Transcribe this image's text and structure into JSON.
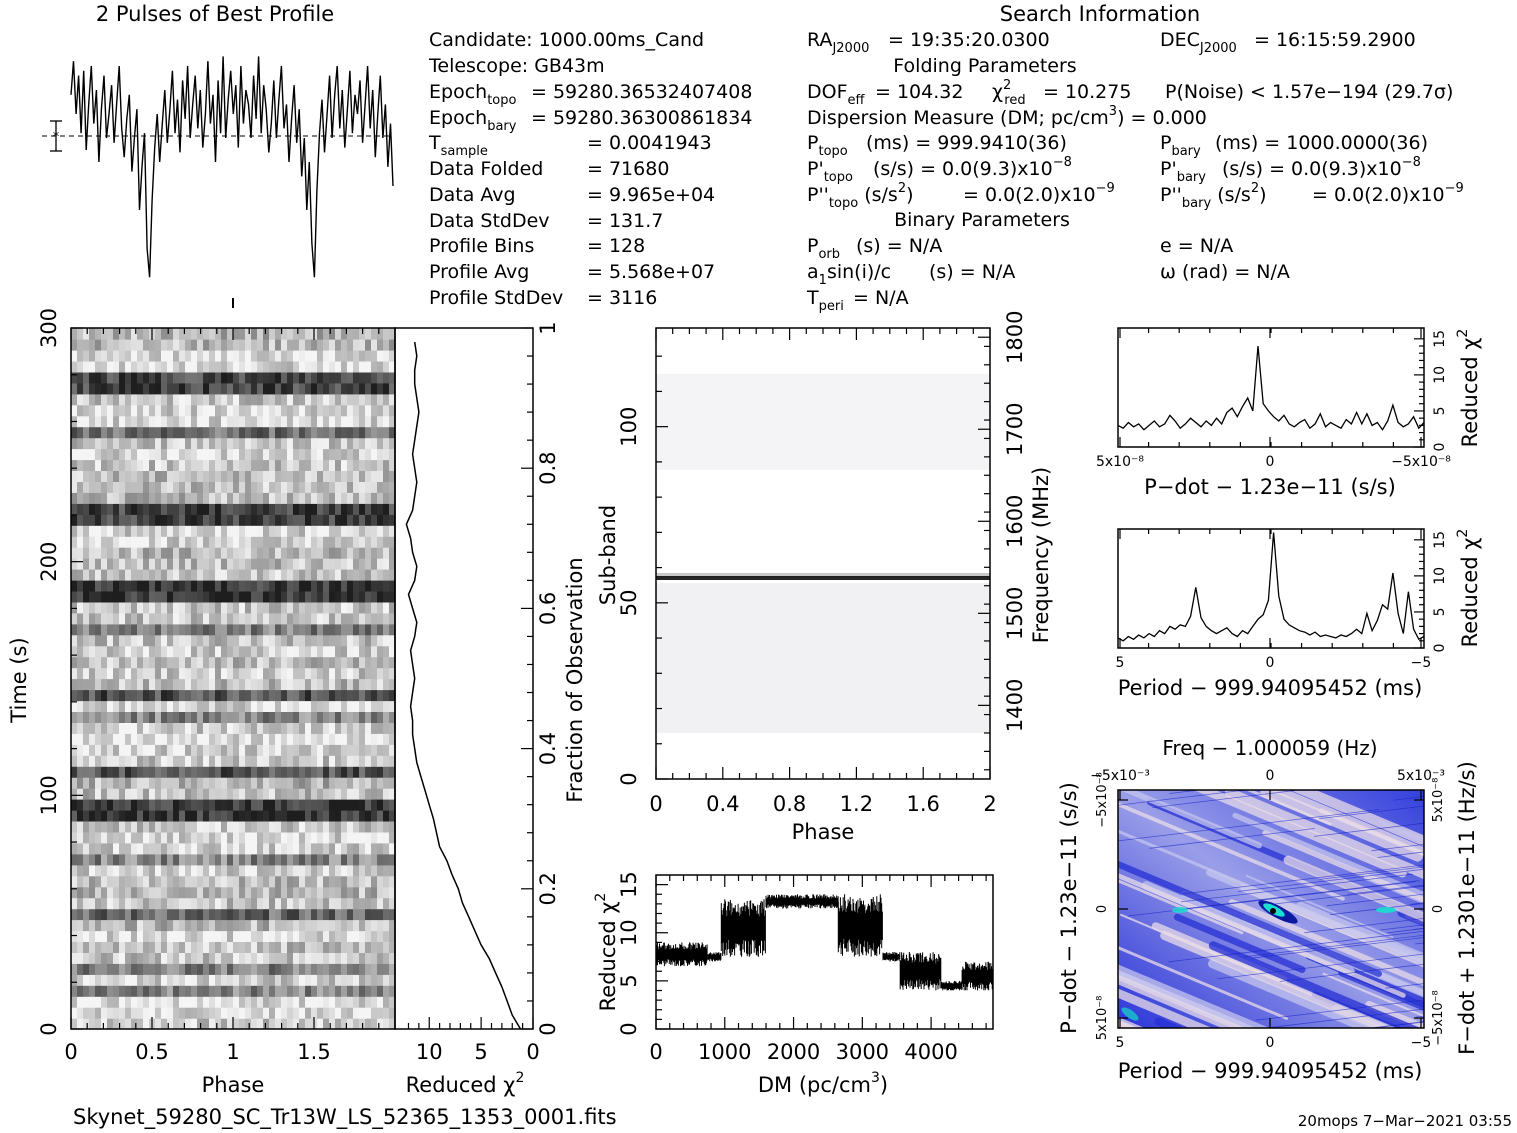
{
  "header": {
    "profile_title": "2 Pulses of Best Profile",
    "search_title": "Search Information",
    "folding_title": "Folding Parameters",
    "binary_title": "Binary Parameters"
  },
  "info": {
    "candidate": "Candidate:  1000.00ms_Cand",
    "telescope": "Telescope:  GB43m",
    "epoch_topo": "= 59280.36532407408",
    "epoch_bary": "= 59280.36300861834",
    "tsample": "=   0.0041943",
    "data_folded_label": "Data Folded",
    "data_folded": "=   71680",
    "data_avg_label": "Data Avg",
    "data_avg": "=   9.965e+04",
    "data_std_label": "Data StdDev",
    "data_std": "=   131.7",
    "profile_bins_label": "Profile Bins",
    "profile_bins": "=   128",
    "profile_avg_label": "Profile Avg",
    "profile_avg": "=   5.568e+07",
    "profile_std_label": "Profile StdDev",
    "profile_std": "=   3116",
    "ra": "= 19:35:20.0300",
    "dec": "= 16:15:59.2900",
    "dof": "= 104.32",
    "chi2": "= 10.275",
    "pnoise": "P(Noise) < 1.57e−194   (29.7σ)",
    "dm": "Dispersion Measure (DM; pc/cm",
    "dm_val": ") = 0.000",
    "ptopo": "(ms)  =  999.9410(36)",
    "pbary": "(ms)  =  1000.0000(36)",
    "pdtopo": "(s/s) = 0.0(9.3)x10",
    "pdbary": "(s/s) = 0.0(9.3)x10",
    "pddtopo": "= 0.0(2.0)x10",
    "pddbary": "= 0.0(2.0)x10",
    "porb": "(s) = N/A",
    "asini": "(s) = N/A",
    "tperi": "= N/A",
    "ecc": "e = N/A",
    "omega": "ω (rad) = N/A"
  },
  "footer": {
    "filename": "Skynet_59280_SC_Tr13W_LS_52365_1353_0001.fits",
    "stamp": "20mops  7−Mar−2021 03:55"
  },
  "colors": {
    "ink": "#000000",
    "map_low": "#1d2bd8",
    "map_mid": "#8a90e8",
    "map_high": "#e8d8e8",
    "map_peak": "#17e0d0"
  },
  "chart_data": [
    {
      "type": "line",
      "name": "profile",
      "title": "2 Pulses of Best Profile",
      "x_range": [
        0,
        2
      ],
      "y_range": [
        0,
        1
      ],
      "values": [
        0.78,
        0.92,
        0.7,
        0.86,
        0.62,
        0.88,
        0.55,
        0.74,
        0.9,
        0.66,
        0.8,
        0.5,
        0.72,
        0.86,
        0.6,
        0.7,
        0.82,
        0.58,
        0.74,
        0.9,
        0.64,
        0.52,
        0.68,
        0.78,
        0.46,
        0.6,
        0.72,
        0.3,
        0.48,
        0.62,
        0.14,
        0.02,
        0.34,
        0.56,
        0.7,
        0.5,
        0.66,
        0.8,
        0.58,
        0.72,
        0.88,
        0.62,
        0.76,
        0.54,
        0.84,
        0.68,
        0.9,
        0.6,
        0.74,
        0.86,
        0.64,
        0.8,
        0.56,
        0.7,
        0.92,
        0.66,
        0.78,
        0.5,
        0.84,
        0.62,
        0.94,
        0.6,
        0.76,
        0.88,
        0.7,
        0.82,
        0.56,
        0.9,
        0.66,
        0.8,
        0.74,
        0.6,
        0.86,
        0.68,
        0.94,
        0.62,
        0.82,
        0.72,
        0.54,
        0.66,
        0.84,
        0.6,
        0.76,
        0.9,
        0.64,
        0.74,
        0.5,
        0.68,
        0.82,
        0.58,
        0.72,
        0.44,
        0.6,
        0.3,
        0.5,
        0.16,
        0.02,
        0.38,
        0.62,
        0.76,
        0.54,
        0.7,
        0.86,
        0.6,
        0.78,
        0.9,
        0.64,
        0.8,
        0.56,
        0.72,
        0.88,
        0.62,
        0.78,
        0.7,
        0.84,
        0.58,
        0.74,
        0.9,
        0.64,
        0.8,
        0.52,
        0.7,
        0.86,
        0.6,
        0.74,
        0.48,
        0.66,
        0.4
      ]
    },
    {
      "type": "heatmap",
      "name": "time-phase",
      "xlabel": "Phase",
      "ylabel": "Time (s)",
      "xlim": [
        0,
        2
      ],
      "ylim": [
        0,
        300
      ],
      "x_ticks": [
        "0",
        "0.5",
        "1",
        "1.5"
      ],
      "y_ticks": [
        "0",
        "100",
        "200",
        "300"
      ],
      "right_axis_label": "Fraction of Observation",
      "right_ticks": [
        "0",
        "0.2",
        "0.4",
        "0.6",
        "0.8",
        "1"
      ]
    },
    {
      "type": "line",
      "name": "time-chi2",
      "xlabel": "Reduced χ²",
      "x_ticks": [
        "10",
        "5",
        "0"
      ],
      "x": [
        1.2,
        2,
        2.5,
        3,
        3.6,
        4.2,
        5,
        5.6,
        6.2,
        6.8,
        7.2,
        7.8,
        8.3,
        9,
        9.3,
        9.6,
        10,
        10.4,
        10.8,
        11.2,
        11.4,
        11.6,
        11.6,
        11.8,
        11.6,
        11.4,
        11.6,
        11.8,
        11.4,
        11.2,
        11.6,
        12,
        11.4,
        11.2,
        11.6,
        11.8,
        12.2,
        11.6,
        11.4,
        11.2,
        11.4,
        11.6,
        11.4,
        11.2,
        11.0,
        11.2,
        11.4,
        11.4,
        11.2,
        11.4
      ],
      "y": [
        0,
        6,
        12,
        18,
        24,
        30,
        36,
        42,
        48,
        54,
        60,
        66,
        72,
        78,
        84,
        90,
        96,
        102,
        108,
        114,
        120,
        126,
        132,
        138,
        144,
        150,
        156,
        162,
        168,
        174,
        180,
        186,
        192,
        198,
        204,
        210,
        216,
        222,
        228,
        234,
        240,
        246,
        252,
        258,
        264,
        270,
        276,
        282,
        288,
        294
      ]
    },
    {
      "type": "heatmap",
      "name": "subband-phase",
      "xlabel": "Phase",
      "ylabel": "Sub-band",
      "x_ticks": [
        "0",
        "0.4",
        "0.8",
        "1.2",
        "1.6",
        "2"
      ],
      "y_ticks": [
        "0",
        "50",
        "100"
      ],
      "right_axis_label": "Frequency (MHz)",
      "right_ticks": [
        "1400",
        "1500",
        "1600",
        "1700",
        "1800"
      ]
    },
    {
      "type": "line",
      "name": "dm-chi2",
      "xlabel": "DM (pc/cm³)",
      "ylabel": "Reduced χ²",
      "x_ticks": [
        "0",
        "1000",
        "2000",
        "3000",
        "4000"
      ],
      "y_ticks": [
        "0",
        "5",
        "10",
        "15"
      ],
      "xlim": [
        0,
        4900
      ],
      "ylim": [
        0,
        16
      ],
      "segments": [
        {
          "x": [
            0,
            750
          ],
          "lo": 6.5,
          "hi": 9
        },
        {
          "x": [
            750,
            950
          ],
          "lo": 7,
          "hi": 8
        },
        {
          "x": [
            950,
            1600
          ],
          "lo": 7.5,
          "hi": 13.5
        },
        {
          "x": [
            1600,
            2650
          ],
          "lo": 12.5,
          "hi": 14
        },
        {
          "x": [
            2650,
            3300
          ],
          "lo": 7.5,
          "hi": 14
        },
        {
          "x": [
            3300,
            3550
          ],
          "lo": 7,
          "hi": 8
        },
        {
          "x": [
            3550,
            4150
          ],
          "lo": 4,
          "hi": 8
        },
        {
          "x": [
            4150,
            4450
          ],
          "lo": 4,
          "hi": 5
        },
        {
          "x": [
            4450,
            4900
          ],
          "lo": 4,
          "hi": 7
        }
      ]
    },
    {
      "type": "line",
      "name": "pdot-chi2",
      "xlabel": "P−dot − 1.23e−11 (s/s)",
      "ylabel": "Reduced χ²",
      "x_ticks": [
        "5x10⁻⁸",
        "0",
        "−5x10⁻⁸"
      ],
      "y_ticks": [
        "0",
        "5",
        "10",
        "15"
      ],
      "values": [
        3,
        2.6,
        3.4,
        2.8,
        3.2,
        2.4,
        3,
        3.6,
        2.8,
        3.2,
        4.4,
        3.6,
        2.6,
        3.2,
        4,
        3.4,
        2.8,
        3.6,
        3,
        4,
        3.2,
        4.8,
        5.4,
        4.2,
        5.6,
        6.8,
        5,
        14,
        6,
        5,
        4.2,
        3.6,
        4.4,
        3.2,
        2.8,
        3.4,
        3.8,
        2.6,
        3.2,
        4.6,
        2.8,
        3.4,
        3,
        2.6,
        3.8,
        3.2,
        4.8,
        3.2,
        4.6,
        3,
        3.4,
        2.4,
        3.6,
        5.8,
        3.4,
        2.8,
        3.2,
        4.2,
        2.6,
        3.4
      ]
    },
    {
      "type": "line",
      "name": "period-chi2",
      "xlabel": "Period − 999.94095452 (ms)",
      "ylabel": "Reduced χ²",
      "x_ticks": [
        "5",
        "0",
        "−5"
      ],
      "y_ticks": [
        "0",
        "5",
        "10",
        "15"
      ],
      "values": [
        1.4,
        1,
        1.6,
        1.2,
        1.8,
        1.4,
        2,
        1.6,
        2.4,
        2,
        3,
        2.6,
        3.2,
        3,
        4.4,
        8.4,
        4.2,
        3,
        2.4,
        2,
        2.4,
        2.8,
        2,
        1.6,
        2.4,
        2,
        3,
        4,
        4.6,
        6.6,
        16,
        7.2,
        4,
        3.2,
        2.8,
        2.4,
        2.2,
        1.8,
        2.2,
        1.6,
        1.8,
        1.6,
        1.4,
        1.8,
        1.6,
        2,
        2.6,
        2,
        4.8,
        2.4,
        3.8,
        6,
        5.4,
        10.4,
        4.8,
        2,
        7.8,
        2.6,
        1.2,
        1.6
      ]
    },
    {
      "type": "heatmap",
      "name": "period-pdot",
      "title": "Freq − 1.000059 (Hz)",
      "xlabel": "Period − 999.94095452 (ms)",
      "ylabel": "P−dot − 1.23e−11 (s/s)",
      "right_label": "F−dot + 1.2301e−11 (Hz/s)",
      "x_ticks": [
        "5",
        "0",
        "−5"
      ],
      "top_ticks": [
        "−5x10⁻³",
        "0",
        "5x10⁻³"
      ],
      "y_ticks": [
        "5x10⁻⁸",
        "0",
        "−5x10⁻⁸"
      ],
      "right_ticks": [
        "−5x10⁻⁸",
        "0",
        "5x10⁻⁸"
      ]
    }
  ]
}
